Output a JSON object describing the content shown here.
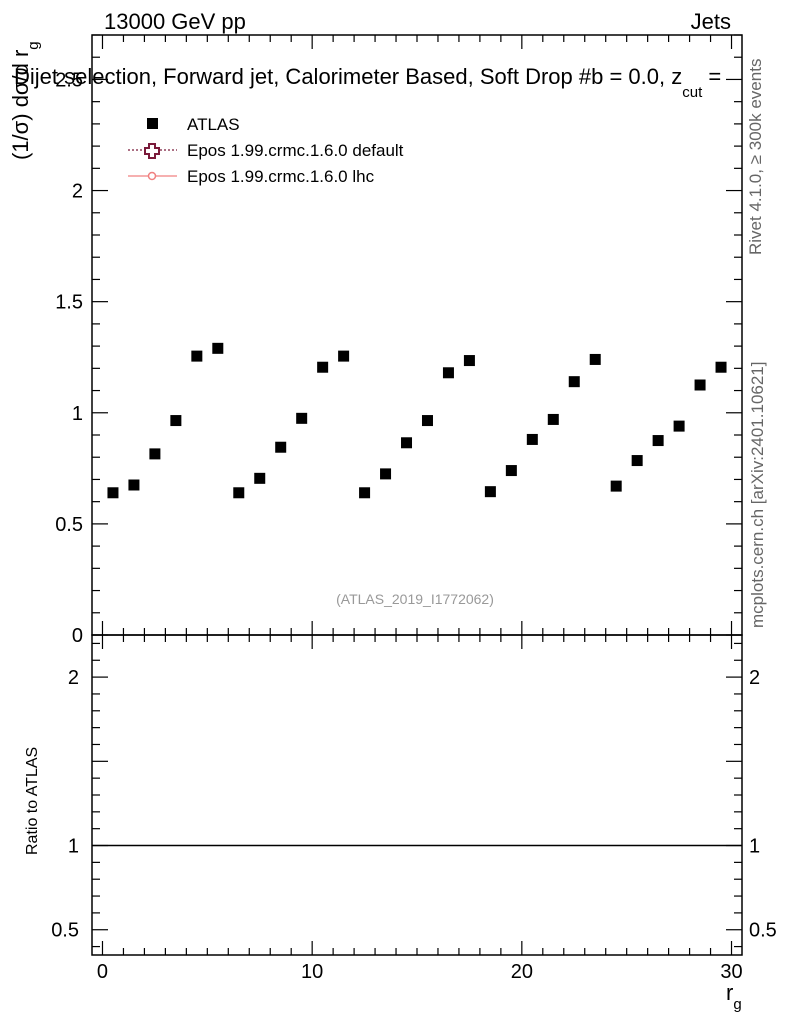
{
  "header": {
    "left": "13000 GeV pp",
    "right": "Jets"
  },
  "title": {
    "main": "Dijet selection, Forward jet, Calorimeter Based, Soft Drop #b = 0.0, z",
    "sub": "cut",
    "tail": " = "
  },
  "side": {
    "rivet": "Rivet 4.1.0, ≥ 300k events",
    "mcplots": "mcplots.cern.ch [arXiv:2401.10621]"
  },
  "watermark": "(ATLAS_2019_I1772062)",
  "colors": {
    "atlas": "#000000",
    "epos_default": "#7a1a3a",
    "epos_lhc": "#f08080"
  },
  "chart_data": [
    {
      "type": "scatter",
      "panel": "main",
      "ylabel": {
        "prefix": "(1/σ) dσ/d r",
        "sub": "g"
      },
      "xlim": [
        -0.5,
        30.5
      ],
      "ylim": [
        0,
        2.7
      ],
      "grid": false,
      "legend_placement": "top-left",
      "x_ticks": [
        "0",
        "10",
        "20",
        "30"
      ],
      "y_ticks": [
        "0",
        "0.5",
        "1",
        "1.5",
        "2",
        "2.5"
      ],
      "series": [
        {
          "name": "ATLAS",
          "marker": "square",
          "x": [
            0.5,
            1.5,
            2.5,
            3.5,
            4.5,
            5.5,
            6.5,
            7.5,
            8.5,
            9.5,
            10.5,
            11.5,
            12.5,
            13.5,
            14.5,
            15.5,
            16.5,
            17.5,
            18.5,
            19.5,
            20.5,
            21.5,
            22.5,
            23.5,
            24.5,
            25.5,
            26.5,
            27.5,
            28.5,
            29.5
          ],
          "values": [
            0.64,
            0.675,
            0.815,
            0.965,
            1.255,
            1.29,
            0.64,
            0.705,
            0.845,
            0.975,
            1.205,
            1.255,
            0.64,
            0.725,
            0.865,
            0.965,
            1.18,
            1.235,
            0.645,
            0.74,
            0.88,
            0.97,
            1.14,
            1.24,
            0.67,
            0.785,
            0.875,
            0.94,
            1.125,
            1.205
          ]
        },
        {
          "name": "Epos 1.99.crmc.1.6.0 default",
          "marker": "open-cross",
          "values": []
        },
        {
          "name": "Epos 1.99.crmc.1.6.0 lhc",
          "marker": "open-circle",
          "values": []
        }
      ]
    },
    {
      "type": "line",
      "panel": "ratio",
      "ylabel": "Ratio to ATLAS",
      "xlabel": {
        "prefix": "r",
        "sub": "g"
      },
      "xlim": [
        -0.5,
        30.5
      ],
      "ylim": [
        0.35,
        2.25
      ],
      "x_ticks": [
        "0",
        "10",
        "20",
        "30"
      ],
      "y_ticks": [
        "0.5",
        "1",
        "2"
      ],
      "series": [
        {
          "name": "ATLAS",
          "x": [
            -0.5,
            30.5
          ],
          "values": [
            1,
            1
          ]
        }
      ]
    }
  ]
}
